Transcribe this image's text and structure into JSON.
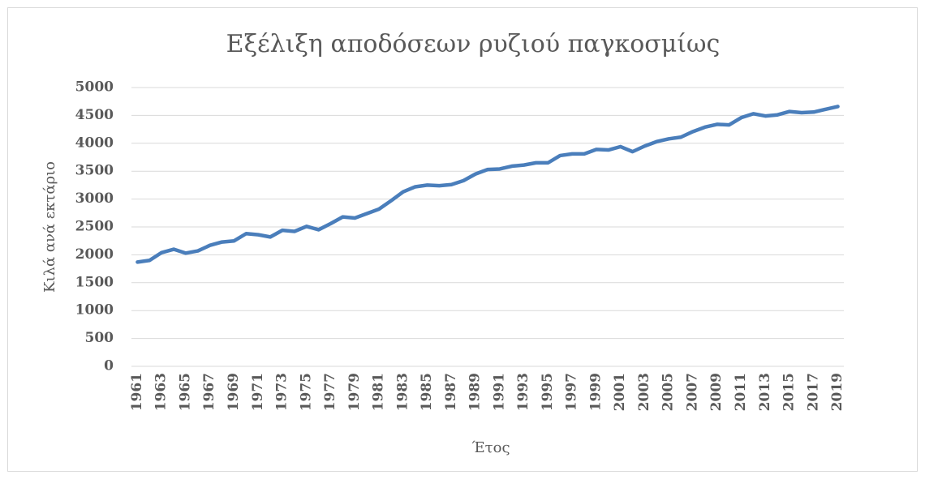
{
  "chart_data": {
    "type": "line",
    "title": "Εξέλιξη αποδόσεων ρυζιού παγκοσμίως",
    "x_label": "Έτος",
    "y_label": "Κιλά ανά εκτάριο",
    "categories": [
      "1961",
      null,
      "1963",
      null,
      "1965",
      null,
      "1967",
      null,
      "1969",
      null,
      "1971",
      null,
      "1973",
      null,
      "1975",
      null,
      "1977",
      null,
      "1979",
      null,
      "1981",
      null,
      "1983",
      null,
      "1985",
      null,
      "1987",
      null,
      "1989",
      null,
      "1991",
      null,
      "1993",
      null,
      "1995",
      null,
      "1997",
      null,
      "1999",
      null,
      "2001",
      null,
      "2003",
      null,
      "2005",
      null,
      "2007",
      null,
      "2009",
      null,
      "2011",
      null,
      "2013",
      null,
      "2015",
      null,
      "2017",
      null,
      "2019"
    ],
    "series": [
      {
        "name": "Κιλά ανά εκτάριο",
        "color": "#4a7ebb",
        "values": [
          1870,
          1900,
          2040,
          2100,
          2030,
          2070,
          2170,
          2230,
          2250,
          2380,
          2360,
          2320,
          2440,
          2420,
          2510,
          2450,
          2560,
          2680,
          2660,
          2740,
          2820,
          2970,
          3130,
          3220,
          3250,
          3240,
          3260,
          3330,
          3450,
          3530,
          3540,
          3590,
          3610,
          3650,
          3650,
          3780,
          3810,
          3810,
          3890,
          3880,
          3940,
          3850,
          3950,
          4030,
          4080,
          4110,
          4210,
          4290,
          4340,
          4330,
          4460,
          4530,
          4490,
          4510,
          4570,
          4550,
          4560,
          4610,
          4660
        ]
      }
    ],
    "ylim": [
      0,
      5000
    ],
    "yticks": [
      0,
      500,
      1000,
      1500,
      2000,
      2500,
      3000,
      3500,
      4000,
      4500,
      5000
    ],
    "grid": true
  }
}
